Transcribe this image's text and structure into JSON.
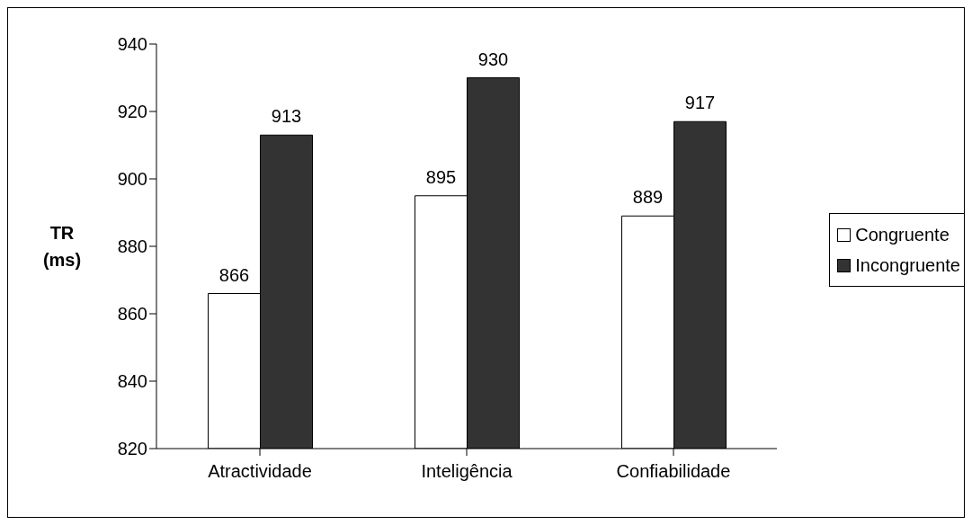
{
  "chart_data": {
    "type": "bar",
    "ylabel": "TR (ms)",
    "categories": [
      "Atractividade",
      "Inteligência",
      "Confiabilidade"
    ],
    "series": [
      {
        "name": "Congruente",
        "color": "#ffffff",
        "values": [
          866,
          895,
          889
        ]
      },
      {
        "name": "Incongruente",
        "color": "#333333",
        "values": [
          913,
          930,
          917
        ]
      }
    ],
    "ylim": [
      820,
      940
    ],
    "yticks": [
      820,
      840,
      860,
      880,
      900,
      920,
      940
    ],
    "grid": false,
    "legend": "right",
    "data_labels": true
  }
}
